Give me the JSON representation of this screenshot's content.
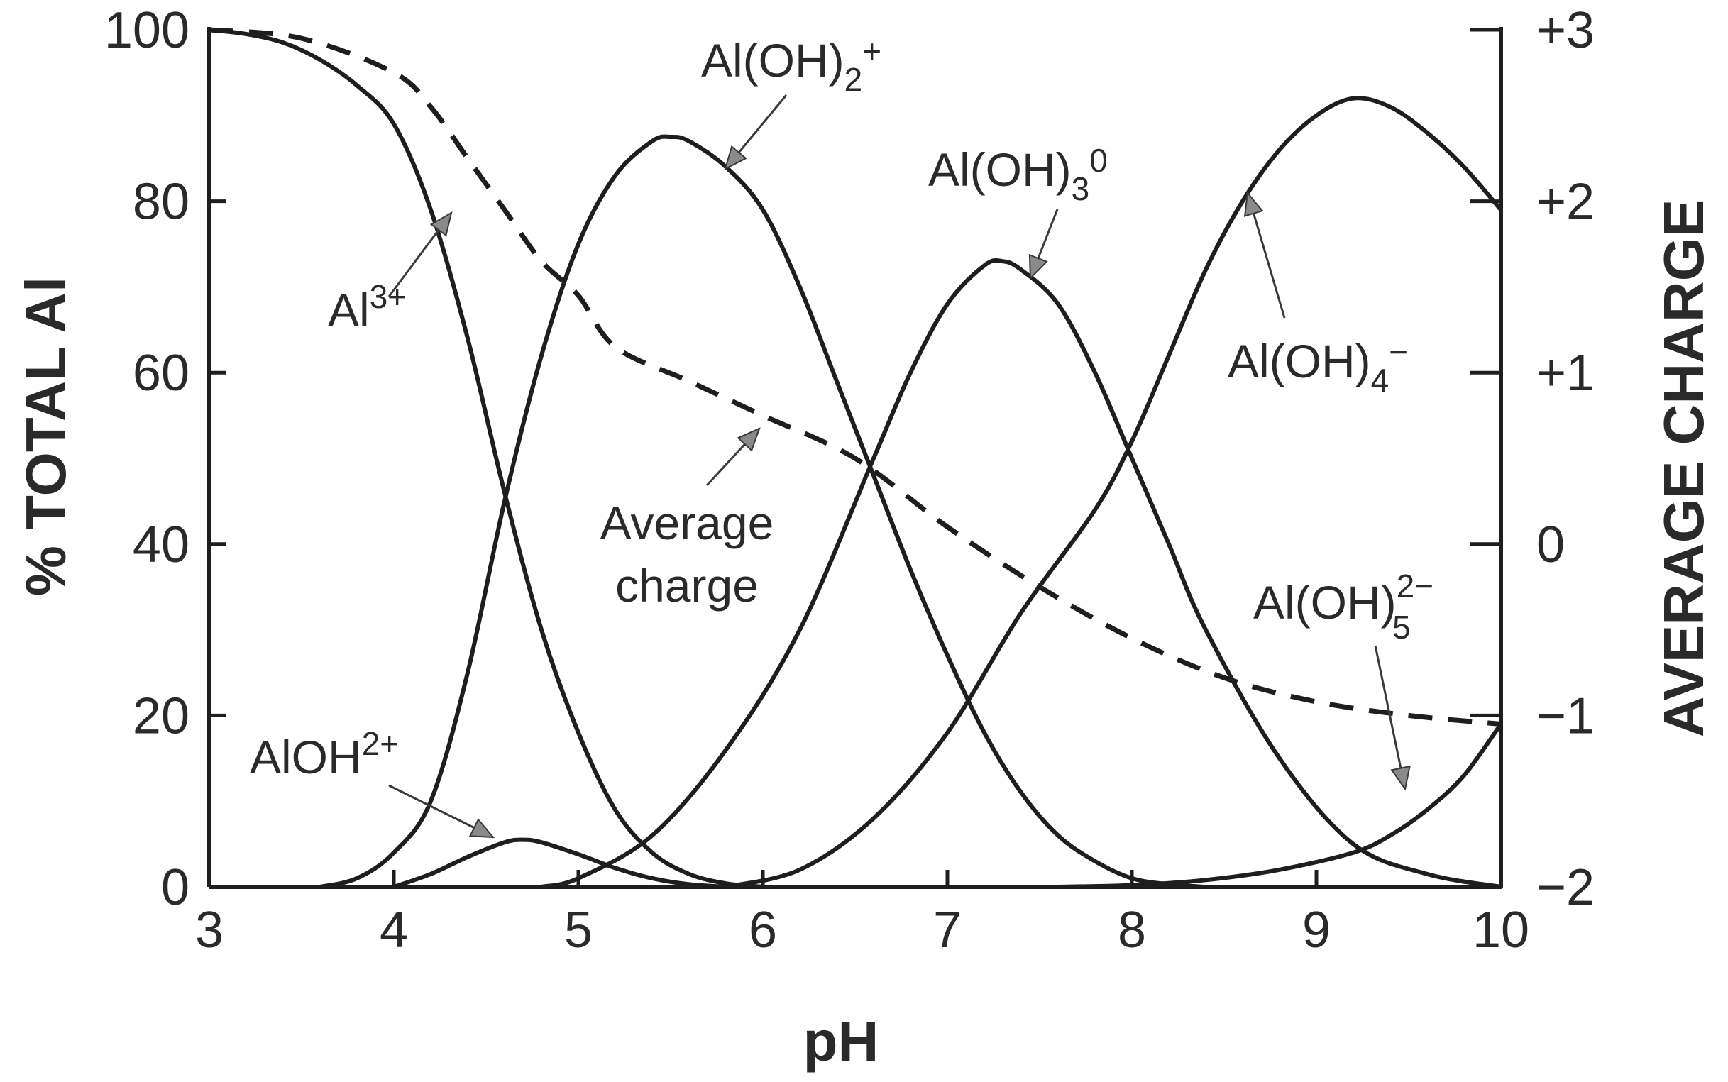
{
  "chart_data": {
    "type": "line",
    "xlabel": "pH",
    "ylabel_left": "% TOTAL Al",
    "ylabel_right": "AVERAGE CHARGE",
    "xlim": [
      3,
      10
    ],
    "ylim_left": [
      0,
      100
    ],
    "ylim_right": [
      -2,
      3
    ],
    "x_ticks": [
      3,
      4,
      5,
      6,
      7,
      8,
      9,
      10
    ],
    "x_tick_labels": [
      "3",
      "4",
      "5",
      "6",
      "7",
      "8",
      "9",
      "10"
    ],
    "y_left_ticks": [
      0,
      20,
      40,
      60,
      80,
      100
    ],
    "y_left_tick_labels": [
      "0",
      "20",
      "40",
      "60",
      "80",
      "100"
    ],
    "y_right_ticks": [
      -2,
      -1,
      0,
      1,
      2,
      3
    ],
    "y_right_tick_labels": [
      "−2",
      "−1",
      "0",
      "+1",
      "+2",
      "+3"
    ],
    "grid": false,
    "series": [
      {
        "name": "Al3+",
        "axis": "left",
        "style": "solid",
        "x": [
          3.0,
          3.2,
          3.4,
          3.6,
          3.8,
          4.0,
          4.2,
          4.4,
          4.6,
          4.8,
          5.0,
          5.2,
          5.4,
          5.6,
          5.8,
          6.0
        ],
        "y": [
          100,
          99.5,
          98.5,
          96.5,
          93.5,
          89,
          79,
          64,
          46,
          30,
          18,
          9,
          4,
          1.5,
          0.4,
          0
        ]
      },
      {
        "name": "AlOH2+",
        "axis": "left",
        "style": "solid",
        "x": [
          4.0,
          4.2,
          4.4,
          4.6,
          4.7,
          4.8,
          5.0,
          5.2,
          5.4,
          5.6,
          5.8
        ],
        "y": [
          0,
          1.5,
          3.5,
          5.2,
          5.5,
          5.2,
          3.8,
          2.2,
          1.0,
          0.3,
          0
        ]
      },
      {
        "name": "Al(OH)2+",
        "axis": "left",
        "style": "solid",
        "x": [
          3.6,
          3.8,
          4.0,
          4.2,
          4.4,
          4.6,
          4.8,
          5.0,
          5.2,
          5.4,
          5.5,
          5.6,
          5.8,
          6.0,
          6.2,
          6.4,
          6.6,
          6.8,
          7.0,
          7.2,
          7.4,
          7.6,
          7.8,
          8.0,
          8.2,
          8.4
        ],
        "y": [
          0,
          1,
          4,
          10,
          25,
          45,
          62,
          75,
          83,
          87,
          87.5,
          87,
          84,
          79,
          70,
          59,
          48,
          37,
          27,
          18,
          11,
          6,
          3,
          1,
          0.3,
          0
        ]
      },
      {
        "name": "Al(OH)3 0",
        "axis": "left",
        "style": "solid",
        "x": [
          4.8,
          5.0,
          5.4,
          5.8,
          6.2,
          6.6,
          6.8,
          7.0,
          7.2,
          7.3,
          7.4,
          7.6,
          7.8,
          8.0,
          8.2,
          8.4,
          8.8,
          9.2,
          9.6,
          10.0
        ],
        "y": [
          0,
          1,
          6,
          16,
          30,
          50,
          60,
          68,
          72.5,
          73,
          72,
          68,
          60,
          50,
          40,
          30,
          15,
          5,
          1.5,
          0
        ]
      },
      {
        "name": "Al(OH)4−",
        "axis": "left",
        "style": "solid",
        "x": [
          5.8,
          6.2,
          6.6,
          7.0,
          7.4,
          7.8,
          8.0,
          8.2,
          8.4,
          8.6,
          8.8,
          9.0,
          9.2,
          9.4,
          9.6,
          9.8,
          10.0
        ],
        "y": [
          0,
          2,
          8,
          18,
          32,
          44,
          52,
          62,
          72,
          80,
          86,
          90,
          92,
          91,
          88,
          84,
          79
        ]
      },
      {
        "name": "Al(OH)5 2−",
        "axis": "left",
        "style": "solid",
        "x": [
          7.6,
          8.0,
          8.4,
          8.8,
          9.2,
          9.4,
          9.6,
          9.8,
          10.0
        ],
        "y": [
          0,
          0.2,
          0.8,
          2,
          4,
          6,
          9,
          13,
          19
        ]
      },
      {
        "name": "Average charge",
        "axis": "right",
        "style": "dashed",
        "x": [
          3.0,
          3.5,
          4.0,
          4.2,
          4.4,
          4.6,
          4.8,
          5.0,
          5.2,
          5.6,
          6.0,
          6.5,
          7.0,
          7.5,
          8.0,
          8.5,
          9.0,
          9.5,
          10.0
        ],
        "y": [
          3.0,
          2.95,
          2.75,
          2.55,
          2.25,
          1.95,
          1.65,
          1.45,
          1.15,
          0.95,
          0.75,
          0.5,
          0.1,
          -0.25,
          -0.55,
          -0.78,
          -0.92,
          -1.0,
          -1.05
        ]
      }
    ],
    "annotations": [
      {
        "id": "al3",
        "text": "Al",
        "sup": "3+",
        "sub": ""
      },
      {
        "id": "aloh2",
        "text": "AlOH",
        "sup": "2+",
        "sub": ""
      },
      {
        "id": "aloh2plus",
        "text": "Al(OH)",
        "sub": "2",
        "sup": "+"
      },
      {
        "id": "aloh3",
        "text": "Al(OH)",
        "sub": "3",
        "sup": "0"
      },
      {
        "id": "aloh4",
        "text": "Al(OH)",
        "sub": "4",
        "sup": "−"
      },
      {
        "id": "aloh5",
        "text": "Al(OH)",
        "sub": "5",
        "sup": "2−"
      },
      {
        "id": "avg1",
        "text": "Average",
        "sub": "",
        "sup": ""
      },
      {
        "id": "avg2",
        "text": "charge",
        "sub": "",
        "sup": ""
      }
    ]
  }
}
